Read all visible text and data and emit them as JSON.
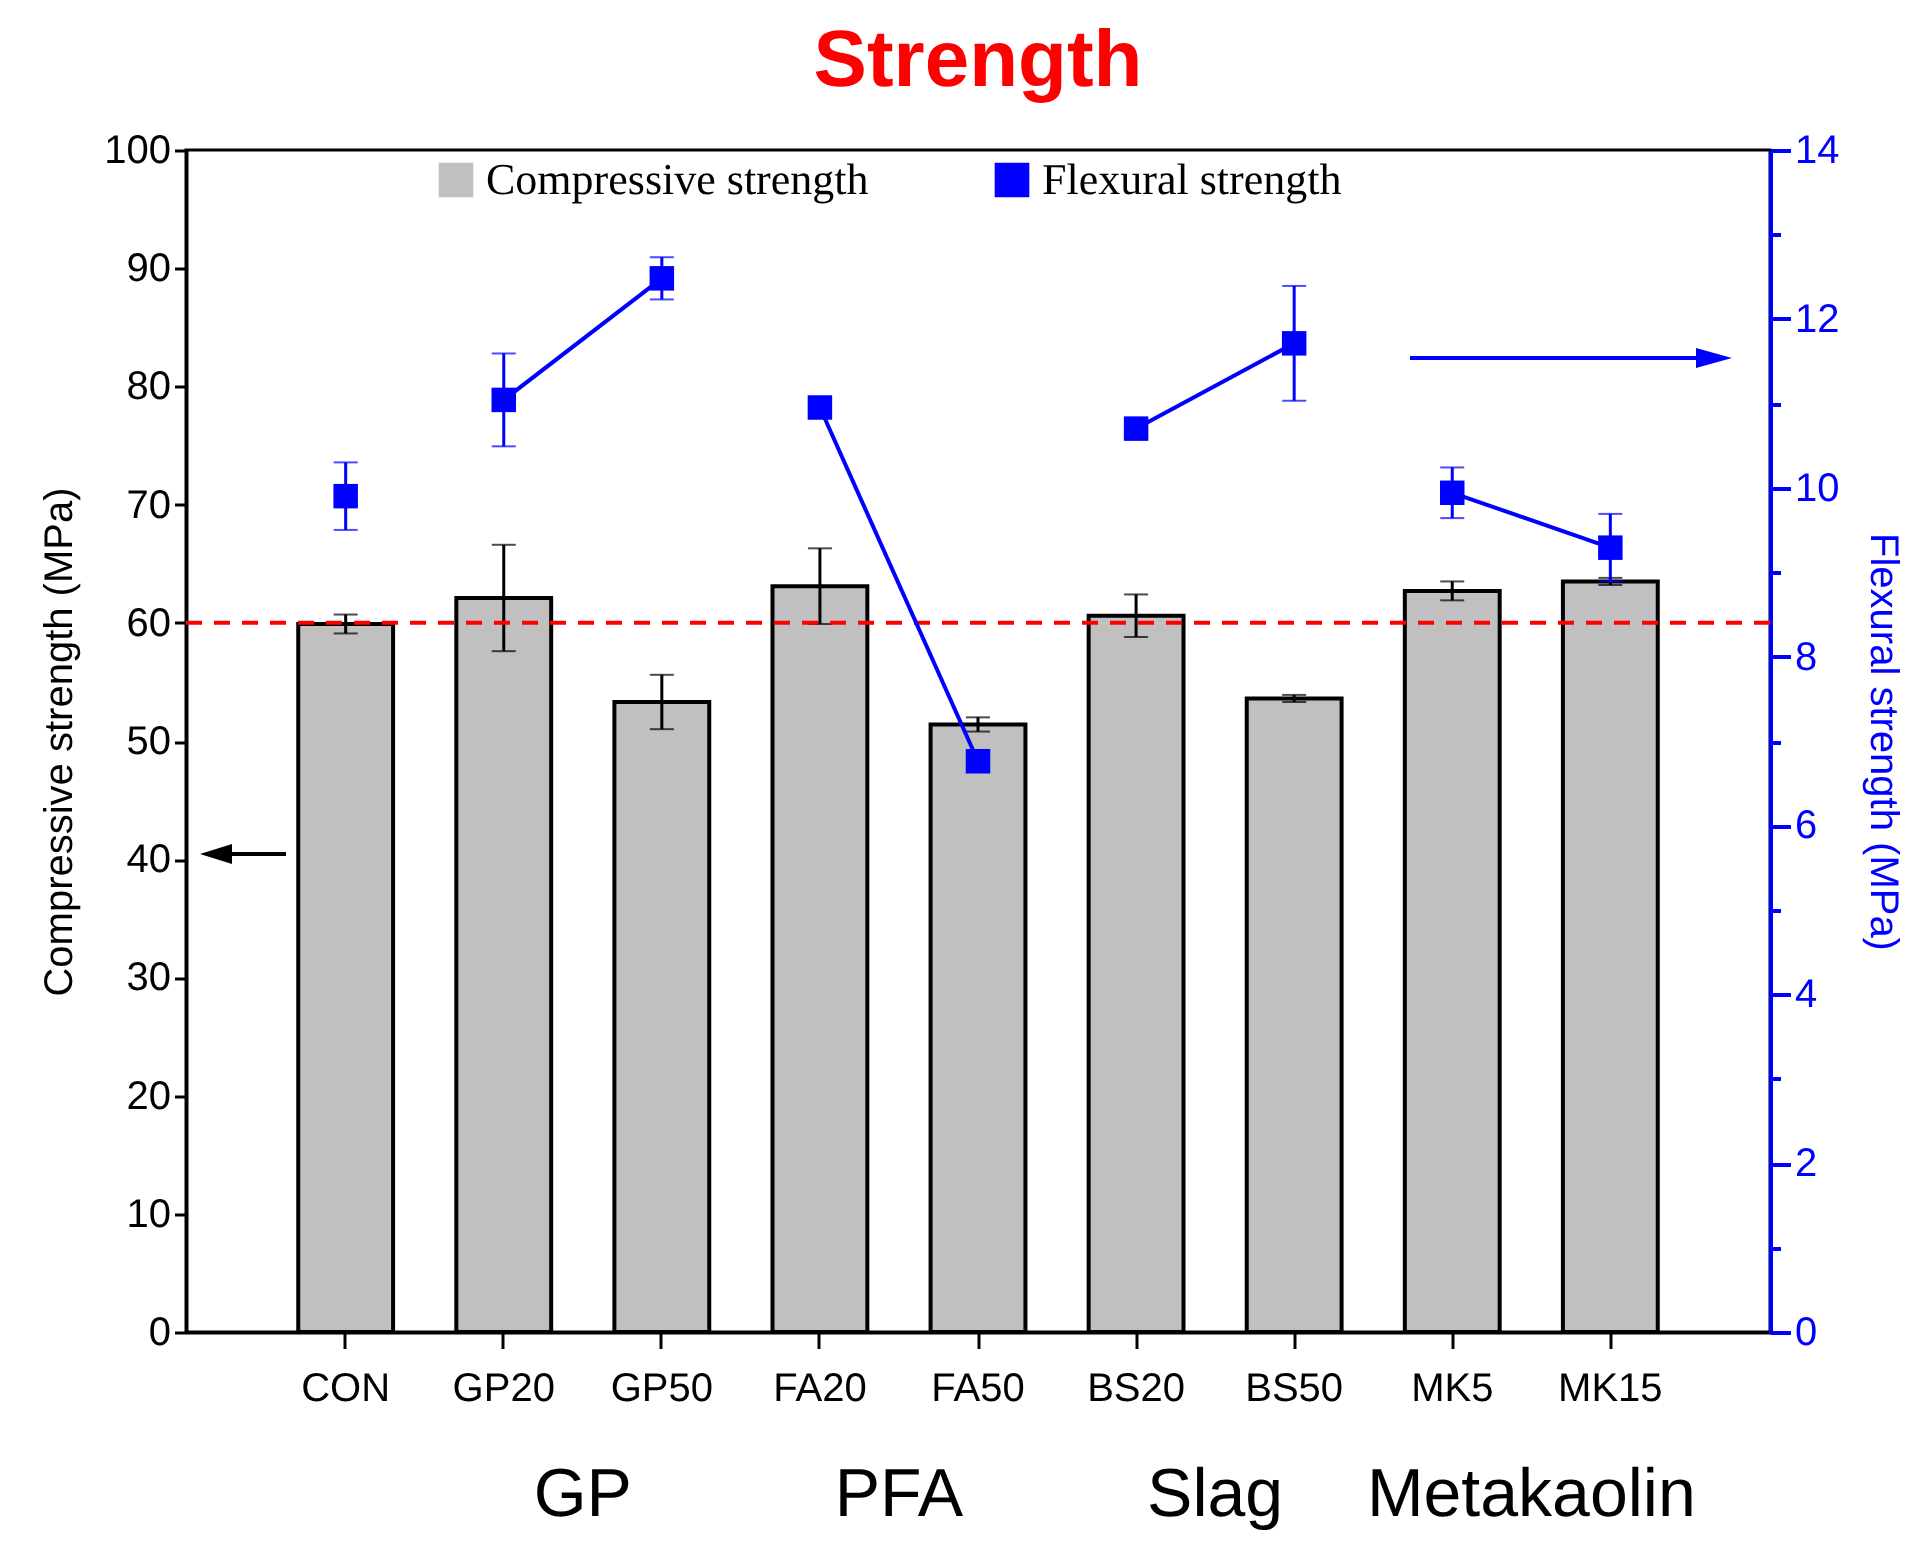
{
  "chart_data": {
    "type": "bar",
    "title": "Strength",
    "ylabel": "Compressive strength (MPa)",
    "y2label": "Flexural strength (MPa)",
    "categories": [
      "CON",
      "GP20",
      "GP50",
      "FA20",
      "FA50",
      "BS20",
      "BS50",
      "MK5",
      "MK15"
    ],
    "series": [
      {
        "name": "Compressive strength",
        "type": "bar",
        "color": "#c0c0c0",
        "values": [
          59.9,
          62.1,
          53.3,
          63.1,
          51.4,
          60.6,
          53.6,
          62.7,
          63.5
        ],
        "errors": [
          0.8,
          4.5,
          2.3,
          3.2,
          0.6,
          1.8,
          0.3,
          0.8,
          0.3
        ]
      },
      {
        "name": "Flexural strength",
        "type": "line",
        "axis": "y2",
        "color": "#0000ff",
        "marker": "square",
        "values": [
          9.9,
          null,
          null,
          null,
          null,
          null,
          null,
          null,
          null
        ],
        "errors": [
          0.4,
          null,
          null,
          null,
          null,
          null,
          null,
          null,
          null
        ]
      },
      {
        "type": "line",
        "axis": "y2",
        "color": "#0000ff",
        "marker": "square",
        "values": [
          null,
          11.04,
          12.48,
          null,
          null,
          null,
          null,
          null,
          null
        ],
        "errors": [
          null,
          0.55,
          0.25,
          null,
          null,
          null,
          null,
          null,
          null
        ]
      },
      {
        "type": "line",
        "axis": "y2",
        "color": "#0000ff",
        "marker": "square",
        "values": [
          null,
          null,
          null,
          10.95,
          6.76,
          null,
          null,
          null,
          null
        ]
      },
      {
        "type": "line",
        "axis": "y2",
        "color": "#0000ff",
        "marker": "square",
        "values": [
          null,
          null,
          null,
          null,
          null,
          10.7,
          11.71,
          null,
          null
        ],
        "errors": [
          null,
          null,
          null,
          null,
          null,
          null,
          0.68,
          null,
          null
        ]
      },
      {
        "type": "line",
        "axis": "y2",
        "color": "#0000ff",
        "marker": "square",
        "values": [
          null,
          null,
          null,
          null,
          null,
          null,
          null,
          9.94,
          9.29
        ],
        "errors": [
          null,
          null,
          null,
          null,
          null,
          null,
          null,
          0.3,
          0.4
        ]
      }
    ],
    "ylim": [
      0,
      100
    ],
    "yticks": [
      0,
      10,
      20,
      30,
      40,
      50,
      60,
      70,
      80,
      90,
      100
    ],
    "y2lim": [
      0,
      14
    ],
    "y2ticks": [
      0,
      {
        "value": 1,
        "label": null
      },
      2,
      {
        "value": 3,
        "label": null
      },
      4,
      {
        "value": 5,
        "label": null
      },
      6,
      {
        "value": 7,
        "label": null
      },
      8,
      {
        "value": 9,
        "label": null
      },
      10,
      {
        "value": 11,
        "label": null
      },
      12,
      {
        "value": 13,
        "label": null
      },
      14
    ],
    "ref_lines": [
      {
        "axis": "y",
        "value": 60,
        "color": "#ff0000",
        "line_style": "dashed"
      }
    ],
    "annotations": [
      "GP",
      "PFA",
      "Slag",
      "Metakaolin"
    ],
    "legend": "top",
    "grid": false
  }
}
